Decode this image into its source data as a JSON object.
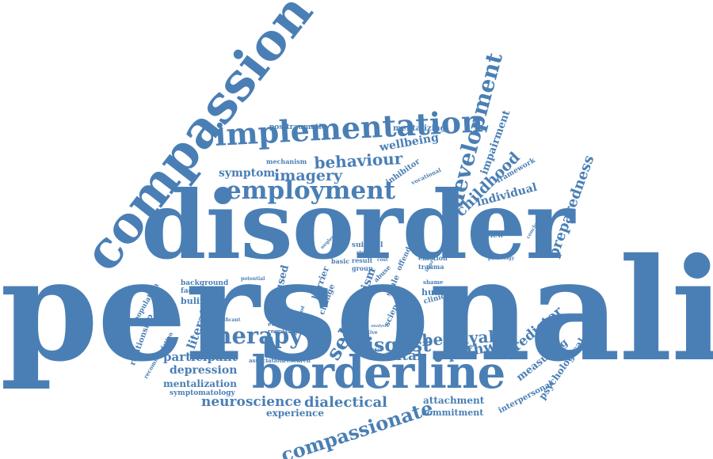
{
  "color": "#4a7fb5",
  "words": [
    {
      "id": "personality",
      "text": "personality"
    },
    {
      "id": "disorder",
      "text": "disorder"
    },
    {
      "id": "compassion",
      "text": "compassion"
    },
    {
      "id": "borderline",
      "text": "borderline"
    },
    {
      "id": "implementation",
      "text": "implementation"
    },
    {
      "id": "employment",
      "text": "employment"
    },
    {
      "id": "development",
      "text": "development"
    },
    {
      "id": "therapy",
      "text": "therapy"
    },
    {
      "id": "compassionate",
      "text": "compassionate"
    },
    {
      "id": "behaviour",
      "text": "behaviour"
    },
    {
      "id": "imagery",
      "text": "imagery"
    },
    {
      "id": "disgust",
      "text": "disgust"
    },
    {
      "id": "betrayal",
      "text": "betrayal"
    },
    {
      "id": "self",
      "text": "self"
    },
    {
      "id": "childhood",
      "text": "childhood"
    },
    {
      "id": "impairment",
      "text": "impairment"
    },
    {
      "id": "preparedness",
      "text": "preparedness"
    },
    {
      "id": "neuroscience",
      "text": "neuroscience"
    },
    {
      "id": "dialectical",
      "text": "dialectical"
    },
    {
      "id": "pathway",
      "text": "pathway"
    },
    {
      "id": "predictor",
      "text": "predictor"
    },
    {
      "id": "measuring",
      "text": "measuring"
    },
    {
      "id": "mental",
      "text": "mental"
    },
    {
      "id": "participant",
      "text": "participant"
    },
    {
      "id": "depression",
      "text": "depression"
    },
    {
      "id": "mentalization",
      "text": "mentalization"
    },
    {
      "id": "literature",
      "text": "literature"
    },
    {
      "id": "bulimia",
      "text": "bulimia"
    },
    {
      "id": "individual",
      "text": "individual"
    },
    {
      "id": "symptom",
      "text": "symptom"
    },
    {
      "id": "wellbeing",
      "text": "wellbeing"
    },
    {
      "id": "mentalizing",
      "text": "mentalizing"
    },
    {
      "id": "posttraumatic",
      "text": "posttraumatic"
    },
    {
      "id": "mechanism",
      "text": "mechanism"
    },
    {
      "id": "framework",
      "text": "framework"
    },
    {
      "id": "inhibitor",
      "text": "inhibitor"
    },
    {
      "id": "vocational",
      "text": "vocational"
    },
    {
      "id": "experience",
      "text": "experience"
    },
    {
      "id": "attachment",
      "text": "attachment"
    },
    {
      "id": "commitment",
      "text": "commitment"
    },
    {
      "id": "interpersonal",
      "text": "interpersonal"
    },
    {
      "id": "psychological",
      "text": "psychological"
    },
    {
      "id": "symptomatology",
      "text": "symptomatology"
    },
    {
      "id": "relationship",
      "text": "relationship"
    },
    {
      "id": "recommendation",
      "text": "recommendation"
    },
    {
      "id": "population",
      "text": "population"
    },
    {
      "id": "background",
      "text": "background"
    },
    {
      "id": "facilitator",
      "text": "facilitator"
    },
    {
      "id": "focused",
      "text": "focused"
    },
    {
      "id": "criticism",
      "text": "criticism"
    },
    {
      "id": "human",
      "text": "human"
    },
    {
      "id": "clinical",
      "text": "clinical"
    },
    {
      "id": "emotion",
      "text": "emotion"
    },
    {
      "id": "trauma",
      "text": "trauma"
    },
    {
      "id": "shame",
      "text": "shame"
    },
    {
      "id": "review",
      "text": "review"
    },
    {
      "id": "pathology",
      "text": "pathology"
    },
    {
      "id": "conclusion",
      "text": "conclusion"
    },
    {
      "id": "suicidal",
      "text": "suicidal"
    },
    {
      "id": "study",
      "text": "study"
    },
    {
      "id": "result",
      "text": "result"
    },
    {
      "id": "group",
      "text": "group"
    },
    {
      "id": "abuse",
      "text": "abuse"
    },
    {
      "id": "offender",
      "text": "offender"
    },
    {
      "id": "science",
      "text": "science"
    },
    {
      "id": "scale",
      "text": "scale"
    },
    {
      "id": "barrier",
      "text": "barrier"
    },
    {
      "id": "change",
      "text": "change"
    },
    {
      "id": "evidence",
      "text": "evidence"
    },
    {
      "id": "regulation",
      "text": "regulation"
    },
    {
      "id": "association",
      "text": "association"
    },
    {
      "id": "research",
      "text": "research"
    },
    {
      "id": "basic",
      "text": "basic"
    },
    {
      "id": "child",
      "text": "child"
    },
    {
      "id": "neglect",
      "text": "neglect"
    },
    {
      "id": "adversity",
      "text": "adversity"
    },
    {
      "id": "significant",
      "text": "significant"
    },
    {
      "id": "potential",
      "text": "potential"
    },
    {
      "id": "negative",
      "text": "negative"
    },
    {
      "id": "response",
      "text": "response"
    },
    {
      "id": "sample",
      "text": "sample"
    },
    {
      "id": "problem",
      "text": "problem"
    },
    {
      "id": "client",
      "text": "client"
    },
    {
      "id": "cost",
      "text": "cost"
    },
    {
      "id": "method",
      "text": "method"
    },
    {
      "id": "injury",
      "text": "injury"
    },
    {
      "id": "analysis",
      "text": "analysis"
    }
  ]
}
